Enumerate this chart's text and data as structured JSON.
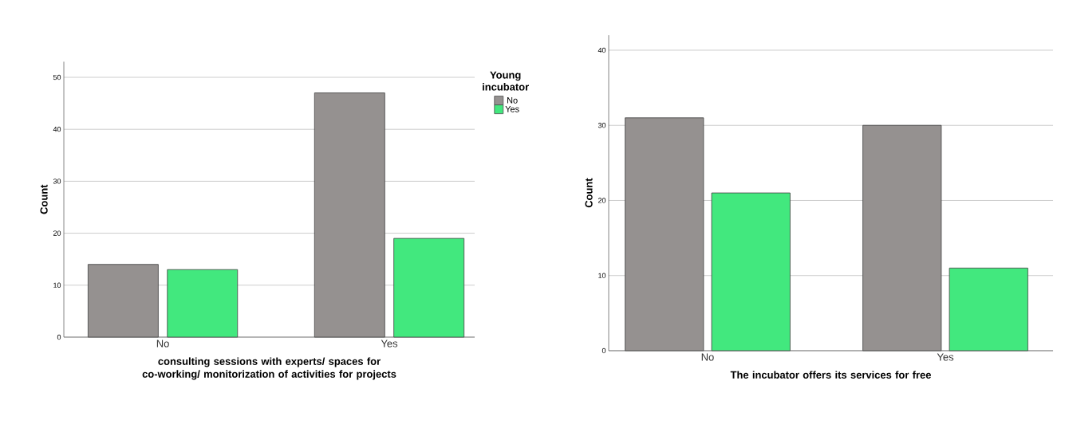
{
  "chart_data": [
    {
      "type": "bar",
      "categories": [
        "No",
        "Yes"
      ],
      "xlabel": "consulting sessions with experts/ spaces for co-working/ monitorization of activities for projects",
      "ylabel": "Count",
      "legend_title": "Young incubator",
      "ylim": [
        0,
        53
      ],
      "yticks": [
        0,
        10,
        20,
        30,
        40,
        50
      ],
      "grid": "y",
      "legend": "top right",
      "series": [
        {
          "name": "No",
          "color": "#959190",
          "values": [
            14,
            47
          ]
        },
        {
          "name": "Yes",
          "color": "#42e87e",
          "values": [
            13,
            19
          ]
        }
      ]
    },
    {
      "type": "bar",
      "categories": [
        "No",
        "Yes"
      ],
      "xlabel": "The incubator offers its services for free",
      "ylabel": "Count",
      "ylim": [
        0,
        42
      ],
      "yticks": [
        0,
        10,
        20,
        30,
        40
      ],
      "grid": "y",
      "series": [
        {
          "color": "#959190",
          "values": [
            31,
            30
          ]
        },
        {
          "color": "#42e87e",
          "values": [
            21,
            11
          ]
        }
      ]
    }
  ]
}
